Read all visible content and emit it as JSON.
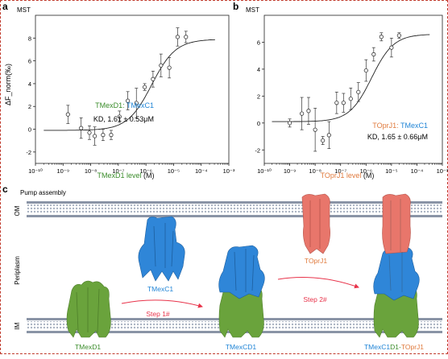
{
  "panel_a": {
    "letter": "a",
    "title": "MST",
    "legend_part1": "TMexD1: ",
    "legend_part2": "TMexC1",
    "kd": "KD, 1.61 ± 0.53μM",
    "ylabel": "ΔF_norm(‰)",
    "xlabel_colored": "TMexD1 level ",
    "xlabel_unit": "(M)"
  },
  "panel_b": {
    "letter": "b",
    "title": "MST",
    "legend_part1": "TOprJ1: ",
    "legend_part2": "TMexC1",
    "kd": "KD, 1.65 ± 0.66μM",
    "xlabel_colored": "TOprJ1 level ",
    "xlabel_unit": "(M)"
  },
  "panel_c": {
    "letter": "c",
    "title": "Pump assembly",
    "om_label": "OM",
    "periplasm_label": "Periplasm",
    "im_label": "IM",
    "step1": "Step 1#",
    "step2": "Step 2#",
    "labels": {
      "tmexd1": "TMexD1",
      "tmexc1": "TMexC1",
      "tmexcd1": "TMexCD1",
      "toprj1": "TOprJ1",
      "pump_part1": "TMexC1",
      "pump_part2": "D1-",
      "pump_part3": "TOprJ1"
    }
  },
  "chart_data": [
    {
      "type": "scatter",
      "title": "MST",
      "xlabel": "TMexD1 level (M)",
      "ylabel": "ΔF_norm(‰)",
      "xscale": "log",
      "xlim": [
        1e-10,
        0.001
      ],
      "ylim": [
        -3,
        10
      ],
      "xticks_exp": [
        -10,
        -9,
        -8,
        -7,
        -6,
        -5,
        -4,
        -3
      ],
      "yticks": [
        -2,
        0,
        2,
        4,
        6,
        8
      ],
      "series": [
        {
          "points": [
            {
              "x": 1.5e-09,
              "y": 1.3,
              "err": 0.8
            },
            {
              "x": 4.5e-09,
              "y": 0.1,
              "err": 0.9
            },
            {
              "x": 9e-09,
              "y": -0.3,
              "err": 0.6
            },
            {
              "x": 1.4e-08,
              "y": -0.6,
              "err": 0.8
            },
            {
              "x": 2.8e-08,
              "y": -0.5,
              "err": 0.5
            },
            {
              "x": 5.5e-08,
              "y": -0.5,
              "err": 0.4
            },
            {
              "x": 1.1e-07,
              "y": 1.1,
              "err": 0.5
            },
            {
              "x": 2.2e-07,
              "y": 2.5,
              "err": 0.8
            },
            {
              "x": 4.5e-07,
              "y": 2.3,
              "err": 1.3
            },
            {
              "x": 9e-07,
              "y": 3.7,
              "err": 0.3
            },
            {
              "x": 1.8e-06,
              "y": 4.4,
              "err": 0.7
            },
            {
              "x": 3.5e-06,
              "y": 5.6,
              "err": 1.0
            },
            {
              "x": 7e-06,
              "y": 5.4,
              "err": 0.9
            },
            {
              "x": 1.4e-05,
              "y": 8.1,
              "err": 0.8
            },
            {
              "x": 2.8e-05,
              "y": 8.1,
              "err": 0.5
            }
          ]
        }
      ],
      "fit": {
        "bottom": -0.1,
        "top": 7.9,
        "kd": 1.61e-06
      },
      "legend": "bottom-right"
    },
    {
      "type": "scatter",
      "title": "MST",
      "xlabel": "TOprJ1 level (M)",
      "ylabel": "",
      "xscale": "log",
      "xlim": [
        1e-10,
        0.001
      ],
      "ylim": [
        -3,
        8
      ],
      "xticks_exp": [
        -10,
        -9,
        -8,
        -7,
        -6,
        -5,
        -4,
        -3
      ],
      "yticks": [
        -2,
        0,
        2,
        4,
        6
      ],
      "series": [
        {
          "points": [
            {
              "x": 1e-09,
              "y": 0.0,
              "err": 0.3
            },
            {
              "x": 3e-09,
              "y": 0.7,
              "err": 1.2
            },
            {
              "x": 5.5e-09,
              "y": 0.9,
              "err": 1.0
            },
            {
              "x": 1e-08,
              "y": -0.5,
              "err": 1.6
            },
            {
              "x": 2e-08,
              "y": -1.3,
              "err": 0.3
            },
            {
              "x": 3.5e-08,
              "y": -0.9,
              "err": 1.0
            },
            {
              "x": 7e-08,
              "y": 1.5,
              "err": 0.8
            },
            {
              "x": 1.3e-07,
              "y": 1.5,
              "err": 0.7
            },
            {
              "x": 2.5e-07,
              "y": 1.8,
              "err": 0.8
            },
            {
              "x": 5e-07,
              "y": 2.3,
              "err": 0.7
            },
            {
              "x": 1e-06,
              "y": 3.9,
              "err": 0.8
            },
            {
              "x": 2e-06,
              "y": 5.1,
              "err": 0.5
            },
            {
              "x": 4e-06,
              "y": 6.4,
              "err": 0.3
            },
            {
              "x": 1e-05,
              "y": 5.6,
              "err": 0.7
            },
            {
              "x": 2e-05,
              "y": 6.5,
              "err": 0.2
            }
          ]
        }
      ],
      "fit": {
        "bottom": 0.1,
        "top": 6.6,
        "kd": 1.65e-06
      },
      "legend": "bottom-right"
    }
  ]
}
